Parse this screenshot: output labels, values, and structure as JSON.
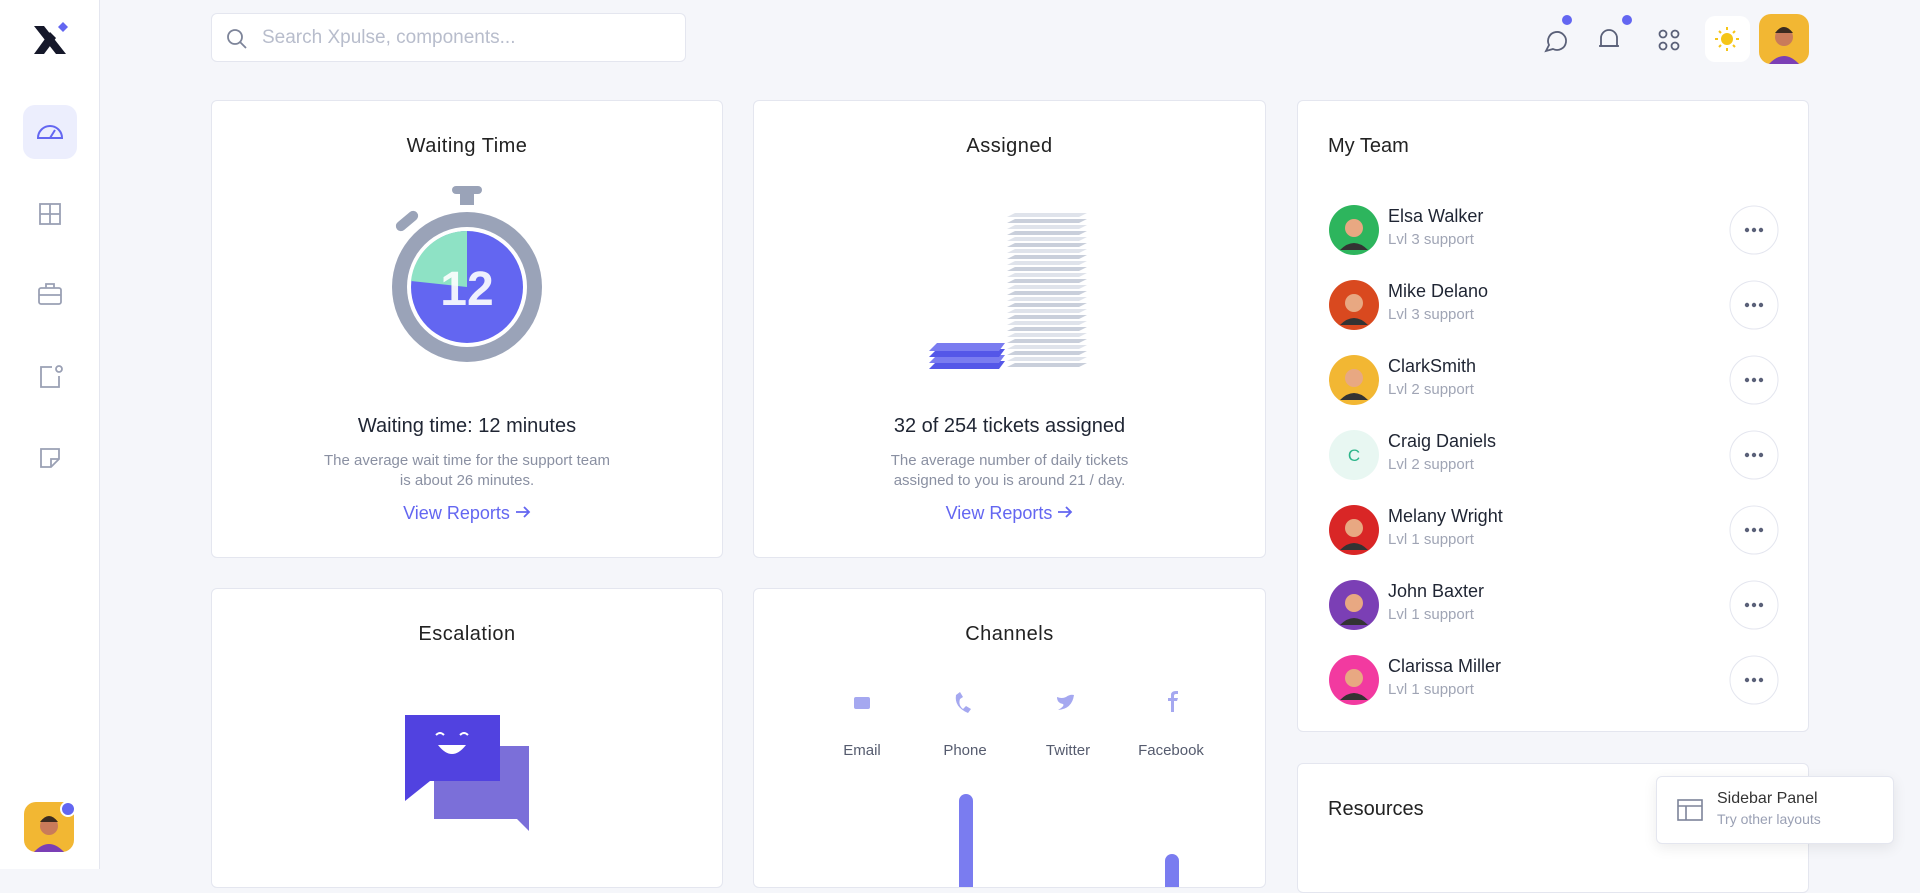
{
  "search_placeholder": "Search Xpulse, components...",
  "cards": [
    {
      "title": "Waiting Time",
      "timer": "12",
      "headline": "Waiting time: 12 minutes",
      "description": [
        "The average wait time for the support team",
        "is about 26 minutes."
      ],
      "link": "View Reports"
    },
    {
      "title": "Assigned",
      "headline": "32 of 254 tickets assigned",
      "description": [
        "The average number of daily tickets",
        "assigned to you is around 21 / day."
      ],
      "link": "View Reports"
    }
  ],
  "escalation": {
    "title": "Escalation"
  },
  "channels": {
    "title": "Channels",
    "items": [
      "Email",
      "Phone",
      "Twitter",
      "Facebook"
    ]
  },
  "team": {
    "title": "My Team",
    "members": [
      {
        "name": "Elsa Walker",
        "role": "Lvl 3 support"
      },
      {
        "name": "Mike Delano",
        "role": "Lvl 3 support"
      },
      {
        "name": "ClarkSmith",
        "role": "Lvl 2 support"
      },
      {
        "name": "Craig Daniels",
        "role": "Lvl 2 support",
        "initial": "C"
      },
      {
        "name": "Melany Wright",
        "role": "Lvl 1 support"
      },
      {
        "name": "John Baxter",
        "role": "Lvl 1 support"
      },
      {
        "name": "Clarissa Miller",
        "role": "Lvl 1 support"
      }
    ]
  },
  "resources": {
    "title": "Resources"
  },
  "layout_panel": {
    "title": "Sidebar Panel",
    "subtitle": "Try other layouts"
  }
}
